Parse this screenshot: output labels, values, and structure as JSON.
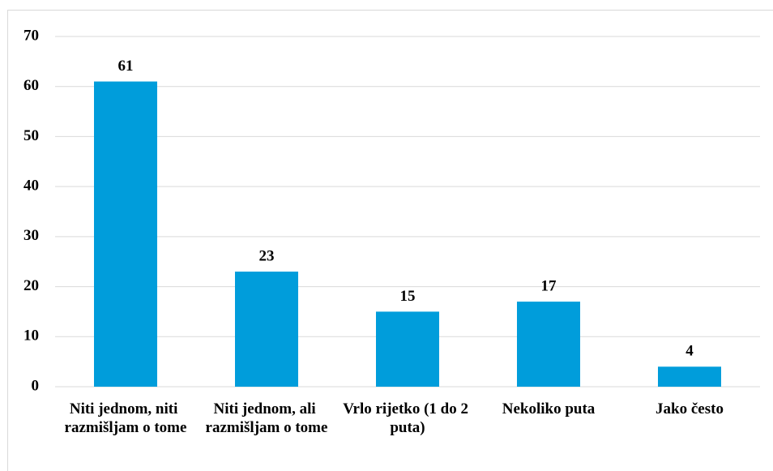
{
  "chart_data": {
    "type": "bar",
    "categories": [
      "Niti jednom, niti razmišljam o tome",
      "Niti jednom, ali razmišljam o tome",
      "Vrlo rijetko (1 do 2 puta)",
      "Nekoliko puta",
      "Jako često"
    ],
    "values": [
      61,
      23,
      15,
      17,
      4
    ],
    "color": "#009ddb",
    "ylim": [
      0,
      70
    ],
    "yticks": [
      0,
      10,
      20,
      30,
      40,
      50,
      60,
      70
    ],
    "grid": true
  }
}
